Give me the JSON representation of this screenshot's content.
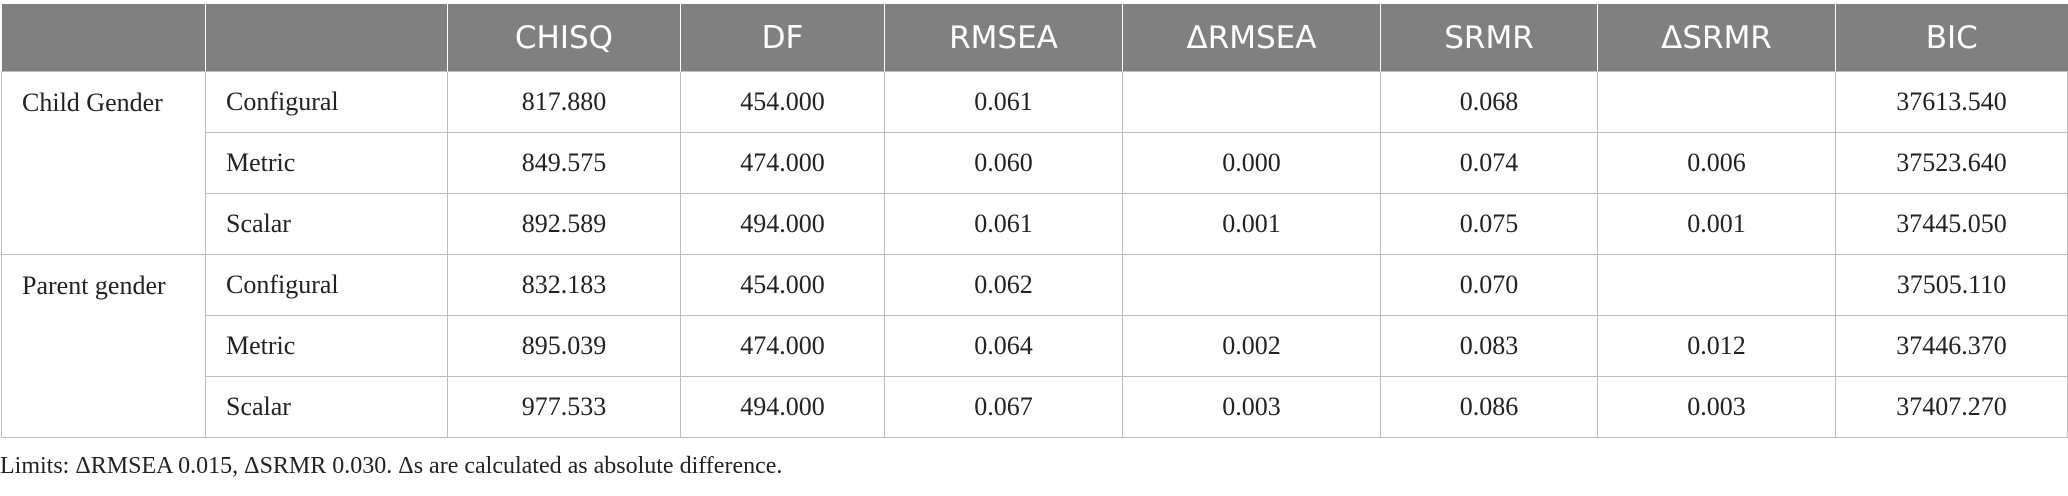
{
  "table": {
    "headers": [
      "",
      "",
      "CHISQ",
      "DF",
      "RMSEA",
      "ΔRMSEA",
      "SRMR",
      "ΔSRMR",
      "BIC"
    ],
    "groups": [
      {
        "label": "Child Gender",
        "rows": [
          {
            "model": "Configural",
            "chisq": "817.880",
            "df": "454.000",
            "rmsea": "0.061",
            "d_rmsea": "",
            "srmr": "0.068",
            "d_srmr": "",
            "bic": "37613.540"
          },
          {
            "model": "Metric",
            "chisq": "849.575",
            "df": "474.000",
            "rmsea": "0.060",
            "d_rmsea": "0.000",
            "srmr": "0.074",
            "d_srmr": "0.006",
            "bic": "37523.640"
          },
          {
            "model": "Scalar",
            "chisq": "892.589",
            "df": "494.000",
            "rmsea": "0.061",
            "d_rmsea": "0.001",
            "srmr": "0.075",
            "d_srmr": "0.001",
            "bic": "37445.050"
          }
        ]
      },
      {
        "label": "Parent gender",
        "rows": [
          {
            "model": "Configural",
            "chisq": "832.183",
            "df": "454.000",
            "rmsea": "0.062",
            "d_rmsea": "",
            "srmr": "0.070",
            "d_srmr": "",
            "bic": "37505.110"
          },
          {
            "model": "Metric",
            "chisq": "895.039",
            "df": "474.000",
            "rmsea": "0.064",
            "d_rmsea": "0.002",
            "srmr": "0.083",
            "d_srmr": "0.012",
            "bic": "37446.370"
          },
          {
            "model": "Scalar",
            "chisq": "977.533",
            "df": "494.000",
            "rmsea": "0.067",
            "d_rmsea": "0.003",
            "srmr": "0.086",
            "d_srmr": "0.003",
            "bic": "37407.270"
          }
        ]
      }
    ]
  },
  "note": "Limits: ΔRMSEA 0.015, ΔSRMR 0.030. Δs are calculated as absolute difference.",
  "colors": {
    "header_bg": "#808080",
    "header_text": "#ffffff",
    "border": "#bdbdbd"
  }
}
